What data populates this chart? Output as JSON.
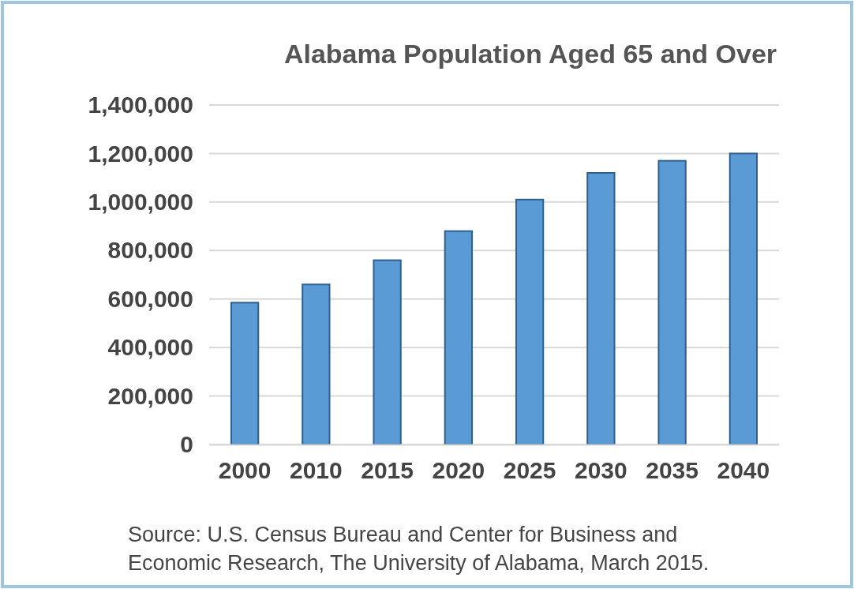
{
  "chart_data": {
    "type": "bar",
    "title": "Alabama Population Aged 65 and Over",
    "categories": [
      "2000",
      "2010",
      "2015",
      "2020",
      "2025",
      "2030",
      "2035",
      "2040"
    ],
    "values": [
      585000,
      660000,
      760000,
      880000,
      1010000,
      1120000,
      1170000,
      1200000
    ],
    "color": "#5b9bd5",
    "ylim": [
      0,
      1400000
    ],
    "yticks": [
      0,
      {
        "value": 200000,
        "label": "200,000"
      },
      {
        "value": 400000,
        "label": "400,000"
      },
      {
        "value": 600000,
        "label": "600,000"
      },
      {
        "value": 800000,
        "label": "800,000"
      },
      {
        "value": 1000000,
        "label": "1,000,000"
      },
      {
        "value": 1200000,
        "label": "1,200,000"
      },
      {
        "value": 1400000,
        "label": "1,400,000"
      }
    ],
    "grid": "y",
    "annotations": [
      "Source: U.S. Census Bureau and Center for Business and",
      "Economic Research, The University of Alabama, March 2015."
    ]
  }
}
